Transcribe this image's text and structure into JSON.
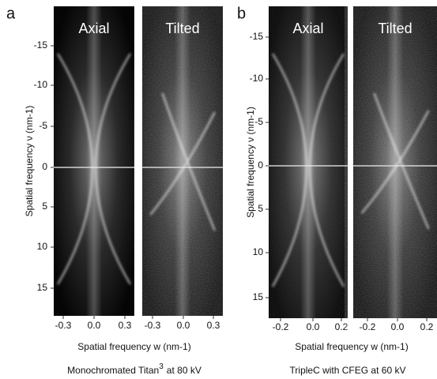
{
  "panels": [
    {
      "label": "a",
      "images": [
        {
          "title": "Axial",
          "x_ticks": [
            "-0.3",
            "0.0",
            "0.3"
          ]
        },
        {
          "title": "Tilted",
          "x_ticks": [
            "-0.3",
            "0.0",
            "0.3"
          ]
        }
      ],
      "y_ticks": [
        "-15",
        "-10",
        "-5",
        "0",
        "5",
        "10",
        "15"
      ],
      "y_label": "Spatial frequency ν (nm-1)",
      "x_label": "Spatial frequency w (nm-1)",
      "caption": {
        "text": "Monochromated Titan",
        "superscript": "3",
        "suffix": "at 80 kV"
      }
    },
    {
      "label": "b",
      "images": [
        {
          "title": "Axial",
          "x_ticks": [
            "-0.2",
            "0.0",
            "0.2"
          ]
        },
        {
          "title": "Tilted",
          "x_ticks": [
            "-0.2",
            "0.0",
            "0.2"
          ]
        }
      ],
      "y_ticks": [
        "-15",
        "-10",
        "-5",
        "0",
        "5",
        "10",
        "15"
      ],
      "y_label": "Spatial frequency ν (nm-1)",
      "x_label": "Spatial frequency w (nm-1)",
      "caption": {
        "text": "TripleC with CFEG at 60 kV"
      }
    }
  ]
}
